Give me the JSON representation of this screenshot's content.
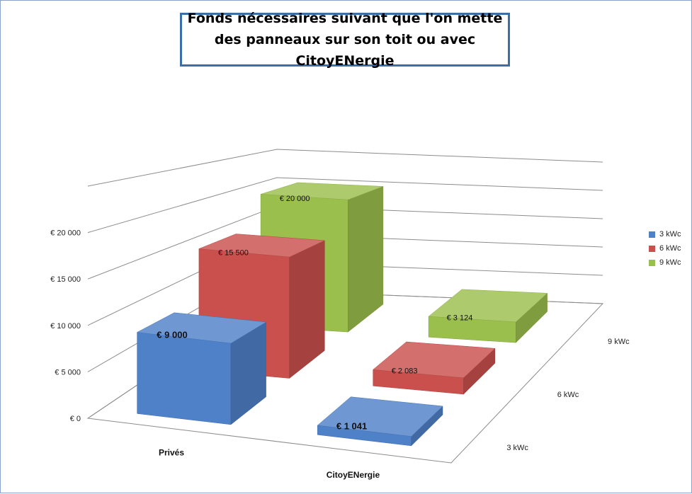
{
  "chart_data": {
    "type": "bar",
    "subtype": "3d-column",
    "title": "Fonds nécessaires suivant que l'on mette des panneaux sur son toit ou avec CitoyENergie",
    "categories": [
      "Privés",
      "CitoyENergie"
    ],
    "series": [
      {
        "name": "3 kWc",
        "color": "#4f81c9",
        "values": [
          9000,
          1041
        ],
        "labels": [
          "€ 9 000",
          "€ 1 041"
        ],
        "label_bold": true
      },
      {
        "name": "6 kWc",
        "color": "#c9504d",
        "values": [
          15500,
          2083
        ],
        "labels": [
          "€ 15 500",
          "€ 2 083"
        ],
        "label_bold": false
      },
      {
        "name": "9 kWc",
        "color": "#9bbf4c",
        "values": [
          20000,
          3124
        ],
        "labels": [
          "€ 20 000",
          "€ 3 124"
        ],
        "label_bold": false
      }
    ],
    "y_ticks": [
      "€ 0",
      "€ 5 000",
      "€ 10 000",
      "€ 15 000",
      "€ 20 000"
    ],
    "ylim": [
      0,
      25000
    ],
    "grid": true,
    "legend_position": "right"
  }
}
